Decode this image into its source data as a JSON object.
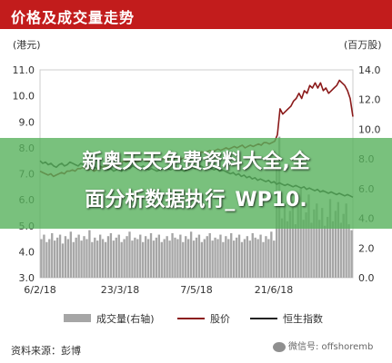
{
  "title": "价格及成交量走势",
  "units": {
    "left": "(港元)",
    "right": "(百万股)"
  },
  "banner": {
    "line1": "新奥天天免费资料大全,全",
    "line2": "面分析数据执行_WP10."
  },
  "legend": {
    "volume": "成交量(右轴)",
    "price": "股价",
    "index": "恒生指数"
  },
  "source": "资料来源：彭博",
  "watermark": "微信号: offshoremb",
  "colors": {
    "title_bar": "#c21c1c",
    "price": "#8b1a1a",
    "index": "#222222",
    "volume": "#a6a6a6",
    "banner": "#58b25c"
  },
  "chart_data": {
    "type": "line",
    "x_ticks": [
      "6/2/18",
      "23/3/18",
      "7/5/18",
      "21/6/18"
    ],
    "y_left": {
      "ylim": [
        3.0,
        11.0
      ],
      "ticks": [
        "3.0",
        "4.0",
        "5.0",
        "6.0",
        "7.0",
        "8.0",
        "9.0",
        "10.0",
        "11.0"
      ]
    },
    "y_right": {
      "ylim": [
        0.0,
        14.0
      ],
      "ticks": [
        "0.0",
        "2.0",
        "4.0",
        "6.0",
        "8.0",
        "10.0",
        "12.0",
        "14.0"
      ]
    },
    "series": [
      {
        "name": "股价",
        "axis": "left",
        "values": [
          7.1,
          7.05,
          7.0,
          6.95,
          7.0,
          6.9,
          6.95,
          7.0,
          7.05,
          7.0,
          7.1,
          7.1,
          7.15,
          7.1,
          7.2,
          7.2,
          7.25,
          7.2,
          7.15,
          7.2,
          7.1,
          7.15,
          7.2,
          7.25,
          7.3,
          7.25,
          7.35,
          7.4,
          7.35,
          7.3,
          7.4,
          7.5,
          7.45,
          7.5,
          7.55,
          7.5,
          7.45,
          7.5,
          7.55,
          7.5,
          7.5,
          7.45,
          7.5,
          7.55,
          7.6,
          7.55,
          7.6,
          7.55,
          7.5,
          7.55,
          7.6,
          7.6,
          7.55,
          7.6,
          7.65,
          7.7,
          7.7,
          7.75,
          7.8,
          7.8,
          7.85,
          7.8,
          7.85,
          7.9,
          7.85,
          7.9,
          7.95,
          7.9,
          7.95,
          8.0,
          7.95,
          8.0,
          8.05,
          8.0,
          8.05,
          8.1,
          8.0,
          8.05,
          8.1,
          8.05,
          8.1,
          8.15,
          8.1,
          8.2,
          8.2,
          8.15,
          8.2,
          8.25,
          8.5,
          9.5,
          9.3,
          9.4,
          9.5,
          9.6,
          9.8,
          9.9,
          10.1,
          9.9,
          10.2,
          10.1,
          10.4,
          10.3,
          10.5,
          10.3,
          10.5,
          10.2,
          10.3,
          10.1,
          10.2,
          10.3,
          10.4,
          10.6,
          10.5,
          10.4,
          10.2,
          9.9,
          9.2
        ]
      },
      {
        "name": "恒生指数",
        "axis": "left",
        "values": [
          7.5,
          7.4,
          7.45,
          7.35,
          7.4,
          7.3,
          7.25,
          7.35,
          7.4,
          7.3,
          7.35,
          7.45,
          7.4,
          7.35,
          7.3,
          7.4,
          7.35,
          7.3,
          7.35,
          7.3,
          7.25,
          7.2,
          7.3,
          7.25,
          7.2,
          7.15,
          7.2,
          7.1,
          7.15,
          7.2,
          7.1,
          7.2,
          7.25,
          7.2,
          7.3,
          7.25,
          7.2,
          7.25,
          7.3,
          7.2,
          7.15,
          7.2,
          7.15,
          7.1,
          7.15,
          7.2,
          7.25,
          7.2,
          7.15,
          7.2,
          7.25,
          7.2,
          7.15,
          7.1,
          7.15,
          7.2,
          7.25,
          7.2,
          7.25,
          7.3,
          7.25,
          7.2,
          7.25,
          7.2,
          7.15,
          7.2,
          7.1,
          7.15,
          7.1,
          7.05,
          7.0,
          7.05,
          6.95,
          7.0,
          6.9,
          6.95,
          6.85,
          6.9,
          6.8,
          6.85,
          6.75,
          6.8,
          6.75,
          6.7,
          6.75,
          6.65,
          6.7,
          6.6,
          6.65,
          6.6,
          6.55,
          6.6,
          6.55,
          6.5,
          6.55,
          6.5,
          6.45,
          6.5,
          6.4,
          6.45,
          6.4,
          6.35,
          6.4,
          6.3,
          6.35,
          6.3,
          6.25,
          6.3,
          6.25,
          6.2,
          6.25,
          6.2,
          6.15,
          6.2,
          6.15,
          6.1
        ]
      },
      {
        "name": "成交量(右轴)",
        "axis": "right",
        "type": "bar",
        "values": [
          2.6,
          2.9,
          2.4,
          2.6,
          3.0,
          2.5,
          2.7,
          2.9,
          2.3,
          2.8,
          2.6,
          3.1,
          2.4,
          2.7,
          2.9,
          2.5,
          2.8,
          2.6,
          3.2,
          2.4,
          2.7,
          2.5,
          2.9,
          2.6,
          2.4,
          2.8,
          3.0,
          2.5,
          2.7,
          2.9,
          2.4,
          2.6,
          2.8,
          3.1,
          2.5,
          2.7,
          2.6,
          2.9,
          2.4,
          2.8,
          2.6,
          3.0,
          2.5,
          2.7,
          2.9,
          2.4,
          2.6,
          2.8,
          2.5,
          3.0,
          2.7,
          2.6,
          2.9,
          2.4,
          2.8,
          2.6,
          3.1,
          2.5,
          2.7,
          2.9,
          2.4,
          2.6,
          2.8,
          3.0,
          2.5,
          2.7,
          2.6,
          2.9,
          2.4,
          2.8,
          2.6,
          3.0,
          2.5,
          2.7,
          2.9,
          2.4,
          2.6,
          2.8,
          2.5,
          3.0,
          2.7,
          2.6,
          2.9,
          2.4,
          2.8,
          2.6,
          3.1,
          2.5,
          7.5,
          9.5,
          4.0,
          5.0,
          3.8,
          4.5,
          5.2,
          3.6,
          4.8,
          6.0,
          3.9,
          4.4,
          5.6,
          3.7,
          4.6,
          5.0,
          3.9,
          4.7,
          3.5,
          4.1,
          5.3,
          3.8,
          4.5,
          5.1,
          3.7,
          4.3,
          5.0,
          3.6,
          3.2
        ]
      }
    ]
  }
}
